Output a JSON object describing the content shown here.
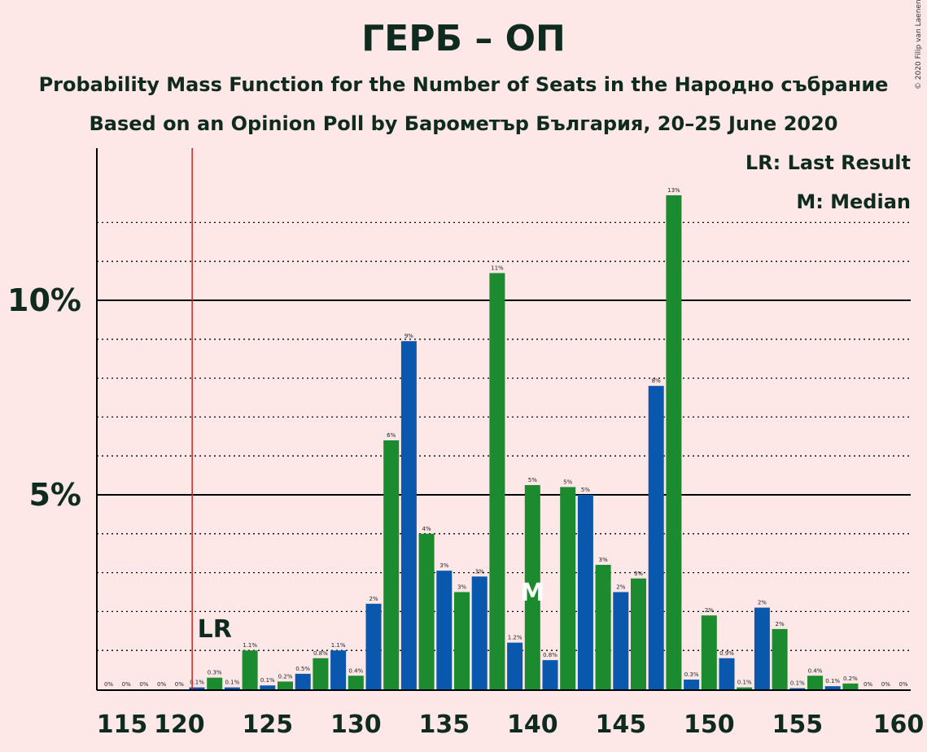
{
  "title": "ГЕРБ – ОП",
  "subtitle_1": "Probability Mass Function for the Number of Seats in the Народно събрание",
  "subtitle_2": "Based on an Opinion Poll by Барометър България, 20–25 June 2020",
  "copyright": "© 2020 Filip van Laenen",
  "legend": {
    "lr": "LR: Last Result",
    "median": "M: Median"
  },
  "colors": {
    "background": "#fde7e7",
    "green": "#1c8a2f",
    "blue": "#0a57ae",
    "last_result_line": "#cc2222",
    "text": "#0f2a1e"
  },
  "chart_data": {
    "type": "bar",
    "xlabel": "",
    "ylabel": "",
    "ylim": [
      0,
      14
    ],
    "x_ticks": [
      115,
      120,
      125,
      130,
      135,
      140,
      145,
      150,
      155,
      160
    ],
    "y_ticks": [
      {
        "value": 5,
        "label": "5%"
      },
      {
        "value": 10,
        "label": "10%"
      }
    ],
    "grid": "dotted at every 1%, solid at 5% and 10%",
    "last_result": {
      "seats": 121,
      "label": "LR"
    },
    "median": {
      "seats": 139,
      "label": "M"
    },
    "bars": [
      {
        "seats": 116,
        "value": 0.0,
        "label": "0%"
      },
      {
        "seats": 117,
        "value": 0.0,
        "label": "0%"
      },
      {
        "seats": 118,
        "value": 0.0,
        "label": "0%"
      },
      {
        "seats": 119,
        "value": 0.0,
        "label": "0%"
      },
      {
        "seats": 120,
        "value": 0.0,
        "label": "0%"
      },
      {
        "seats": 121,
        "value": 0.05,
        "label": "0.1%"
      },
      {
        "seats": 122,
        "value": 0.3,
        "label": "0.3%"
      },
      {
        "seats": 123,
        "value": 0.05,
        "label": "0.1%"
      },
      {
        "seats": 124,
        "value": 1.0,
        "label": "1.1%"
      },
      {
        "seats": 125,
        "value": 0.1,
        "label": "0.1%"
      },
      {
        "seats": 126,
        "value": 0.2,
        "label": "0.2%"
      },
      {
        "seats": 127,
        "value": 0.4,
        "label": "0.5%"
      },
      {
        "seats": 128,
        "value": 0.8,
        "label": "0.8%"
      },
      {
        "seats": 129,
        "value": 1.0,
        "label": "1.1%"
      },
      {
        "seats": 130,
        "value": 0.35,
        "label": "0.4%"
      },
      {
        "seats": 131,
        "value": 2.2,
        "label": "2%"
      },
      {
        "seats": 132,
        "value": 6.4,
        "label": "6%"
      },
      {
        "seats": 133,
        "value": 8.95,
        "label": "9%"
      },
      {
        "seats": 134,
        "value": 4.0,
        "label": "4%"
      },
      {
        "seats": 135,
        "value": 3.05,
        "label": "3%"
      },
      {
        "seats": 136,
        "value": 2.5,
        "label": "3%"
      },
      {
        "seats": 137,
        "value": 2.9,
        "label": "3%"
      },
      {
        "seats": 138,
        "value": 10.7,
        "label": "11%"
      },
      {
        "seats": 139,
        "value": 1.2,
        "label": "1.2%"
      },
      {
        "seats": 140,
        "value": 5.25,
        "label": "5%"
      },
      {
        "seats": 141,
        "value": 0.75,
        "label": "0.8%"
      },
      {
        "seats": 142,
        "value": 5.2,
        "label": "5%"
      },
      {
        "seats": 143,
        "value": 5.0,
        "label": "5%"
      },
      {
        "seats": 144,
        "value": 3.2,
        "label": "3%"
      },
      {
        "seats": 145,
        "value": 2.5,
        "label": "2%"
      },
      {
        "seats": 146,
        "value": 2.85,
        "label": "3%"
      },
      {
        "seats": 147,
        "value": 7.8,
        "label": "8%"
      },
      {
        "seats": 148,
        "value": 12.7,
        "label": "13%"
      },
      {
        "seats": 149,
        "value": 0.25,
        "label": "0.3%"
      },
      {
        "seats": 150,
        "value": 1.9,
        "label": "2%"
      },
      {
        "seats": 151,
        "value": 0.8,
        "label": "0.9%"
      },
      {
        "seats": 152,
        "value": 0.05,
        "label": "0.1%"
      },
      {
        "seats": 153,
        "value": 2.1,
        "label": "2%"
      },
      {
        "seats": 154,
        "value": 1.55,
        "label": "2%"
      },
      {
        "seats": 155,
        "value": 0.03,
        "label": "0.1%"
      },
      {
        "seats": 156,
        "value": 0.35,
        "label": "0.4%"
      },
      {
        "seats": 157,
        "value": 0.08,
        "label": "0.1%"
      },
      {
        "seats": 158,
        "value": 0.15,
        "label": "0.2%"
      },
      {
        "seats": 159,
        "value": 0.0,
        "label": "0%"
      },
      {
        "seats": 160,
        "value": 0.0,
        "label": "0%"
      },
      {
        "seats": 161,
        "value": 0.0,
        "label": "0%"
      }
    ]
  }
}
